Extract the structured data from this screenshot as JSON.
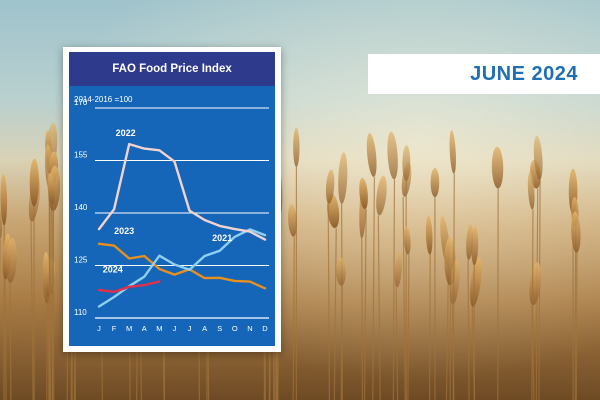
{
  "header": {
    "title": "FAO Food Price Index"
  },
  "banner": {
    "date_label": "JUNE 2024"
  },
  "background": {
    "description_icon": "wheat-field-photo"
  },
  "colors": {
    "header_bg": "#2e3a8c",
    "chart_bg": "#1565b8",
    "banner_text": "#1f6fb3",
    "series_2022": "#f3d3d0",
    "series_2023": "#e8901e",
    "series_2021": "#8ed0f5",
    "series_2024": "#e0314a",
    "gridline": "#ffffff"
  },
  "chart_data": {
    "type": "line",
    "title": "FAO Food Price Index",
    "ylabel": "2014-2016 =100",
    "xlabel": "",
    "categories": [
      "J",
      "F",
      "M",
      "A",
      "M",
      "J",
      "J",
      "A",
      "S",
      "O",
      "N",
      "D"
    ],
    "ylim": [
      110,
      170
    ],
    "yticks": [
      110,
      125,
      140,
      155,
      170
    ],
    "grid": true,
    "series": [
      {
        "name": "2022",
        "color": "#f3d3d0",
        "values": [
          135.4,
          141.1,
          159.7,
          158.4,
          157.9,
          154.7,
          140.7,
          138.0,
          136.3,
          135.4,
          134.7,
          132.4
        ]
      },
      {
        "name": "2023",
        "color": "#e8901e",
        "values": [
          131.2,
          130.7,
          127.0,
          127.7,
          124.0,
          122.4,
          123.9,
          121.4,
          121.5,
          120.6,
          120.4,
          118.5
        ]
      },
      {
        "name": "2021",
        "color": "#8ed0f5",
        "values": [
          113.3,
          116.0,
          119.1,
          121.8,
          127.8,
          125.3,
          123.8,
          127.7,
          129.2,
          133.2,
          135.3,
          133.7
        ]
      },
      {
        "name": "2024",
        "color": "#e0314a",
        "values": [
          118.0,
          117.5,
          118.9,
          119.4,
          120.4,
          null,
          null,
          null,
          null,
          null,
          null,
          null
        ]
      }
    ]
  }
}
